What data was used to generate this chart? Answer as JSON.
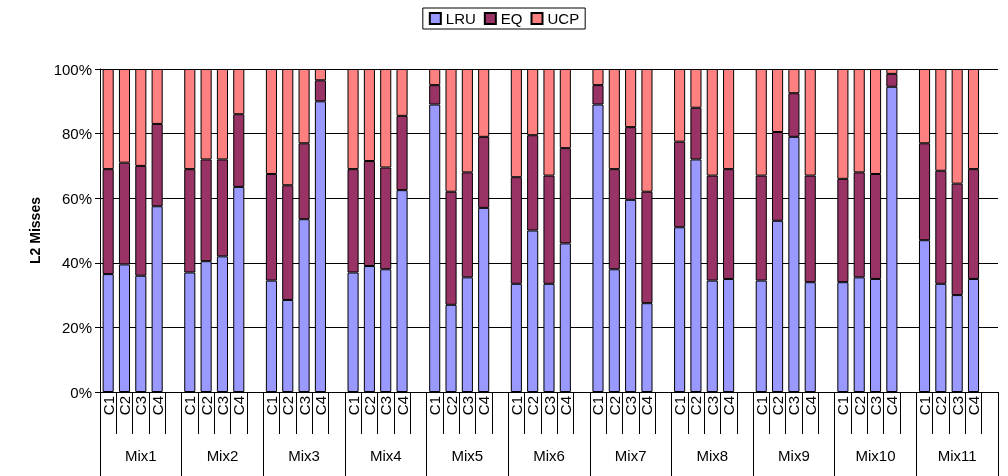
{
  "chart_data": {
    "type": "bar",
    "stacked": true,
    "ylabel": "L2 Misses",
    "categories": [
      "C1",
      "C2",
      "C3",
      "C4",
      null,
      "C1",
      "C2",
      "C3",
      "C4",
      null,
      "C1",
      "C2",
      "C3",
      "C4",
      null,
      "C1",
      "C2",
      "C3",
      "C4",
      null,
      "C1",
      "C2",
      "C3",
      "C4",
      null,
      "C1",
      "C2",
      "C3",
      "C4",
      null,
      "C1",
      "C2",
      "C3",
      "C4",
      null,
      "C1",
      "C2",
      "C3",
      "C4",
      null,
      "C1",
      "C2",
      "C3",
      "C4",
      null,
      "C1",
      "C2",
      "C3",
      "C4",
      null,
      "C1",
      "C2",
      "C3",
      "C4",
      null
    ],
    "series": [
      {
        "name": "LRU",
        "color": "#9999ff",
        "values": [
          36.5,
          39.5,
          36,
          57.5,
          null,
          37,
          40.5,
          42,
          63.5,
          null,
          34.5,
          28.5,
          53.5,
          90,
          null,
          37,
          39,
          38,
          62.5,
          null,
          89,
          27,
          35.5,
          57,
          null,
          33.5,
          50,
          33.5,
          46,
          null,
          89,
          38,
          59.5,
          27.5,
          null,
          51,
          72,
          34.5,
          35,
          null,
          34.5,
          53,
          79,
          34,
          null,
          34,
          35.5,
          35,
          94.5,
          null,
          47,
          33.5,
          30,
          35,
          null
        ]
      },
      {
        "name": "EQ",
        "color": "#993366",
        "values": [
          32.5,
          31.5,
          34,
          25.5,
          null,
          32,
          31.5,
          30,
          22.5,
          null,
          33,
          35.5,
          23.5,
          6.5,
          null,
          32,
          32.5,
          31.5,
          23,
          null,
          6,
          35,
          32.5,
          22,
          null,
          33,
          29.5,
          33.5,
          29.5,
          null,
          6,
          31,
          22.5,
          34.5,
          null,
          26.5,
          16,
          32.5,
          34,
          null,
          32.5,
          27.5,
          13.5,
          33,
          null,
          32,
          32.5,
          32.5,
          4,
          null,
          30,
          35,
          34.5,
          34,
          null
        ]
      },
      {
        "name": "UCP",
        "color": "#ff8080",
        "values": [
          31,
          29,
          30,
          17,
          null,
          31,
          28,
          28,
          14,
          null,
          32.5,
          36,
          23,
          3.5,
          null,
          31,
          28.5,
          30.5,
          14.5,
          null,
          5,
          38,
          32,
          21,
          null,
          33.5,
          20.5,
          33,
          24.5,
          null,
          5,
          31,
          18,
          38,
          null,
          22.5,
          12,
          33,
          31,
          null,
          33,
          19.5,
          7.5,
          33,
          null,
          34,
          32,
          32.5,
          1.5,
          null,
          23,
          31.5,
          35.5,
          31,
          null
        ]
      }
    ],
    "ylim": [
      0,
      100
    ],
    "yticks": [
      {
        "value": 0,
        "label": "0%"
      },
      {
        "value": 20,
        "label": "20%"
      },
      {
        "value": 40,
        "label": "40%"
      },
      {
        "value": 60,
        "label": "60%"
      },
      {
        "value": 80,
        "label": "80%"
      },
      {
        "value": 100,
        "label": "100%"
      }
    ],
    "grid": "y",
    "legend": "top",
    "annotations": [
      "Mix1",
      "Mix2",
      "Mix3",
      "Mix4",
      "Mix5",
      "Mix6",
      "Mix7",
      "Mix8",
      "Mix9",
      "Mix10",
      "Mix11"
    ]
  }
}
